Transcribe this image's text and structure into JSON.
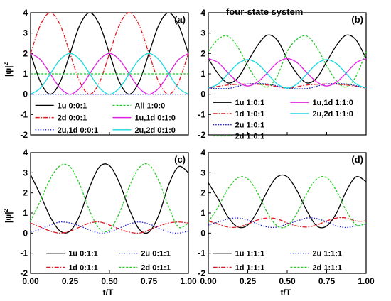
{
  "figure": {
    "title": "four-state system",
    "ylabel_main": "|ψ|",
    "ylabel_sup": "2",
    "xlabel": "t/T"
  },
  "chart_data": [
    {
      "panel": "(a)",
      "type": "line",
      "xlim": [
        0,
        1
      ],
      "ylim": [
        -2,
        4
      ],
      "xticks": [
        "0.00",
        "0.25",
        "0.50",
        "0.75",
        "1.00"
      ],
      "yticks": [
        "-2",
        "-1",
        "0",
        "1",
        "2",
        "3",
        "4"
      ],
      "series": [
        {
          "name": "1u 0:0:1",
          "color": "#000000",
          "dash": "solid",
          "x": [
            0,
            0.0625,
            0.125,
            0.1875,
            0.25,
            0.3125,
            0.375,
            0.4375,
            0.5,
            0.5625,
            0.625,
            0.6875,
            0.75,
            0.8125,
            0.875,
            0.9375,
            1
          ],
          "y": [
            2,
            0.6,
            0,
            0.6,
            2,
            3.4,
            4,
            3.4,
            2,
            0.6,
            0,
            0.6,
            2,
            3.4,
            4,
            3.4,
            2
          ]
        },
        {
          "name": "2d 0:0:1",
          "color": "#e0141e",
          "dash": "dashdot",
          "x": [
            0,
            0.0625,
            0.125,
            0.1875,
            0.25,
            0.3125,
            0.375,
            0.4375,
            0.5,
            0.5625,
            0.625,
            0.6875,
            0.75,
            0.8125,
            0.875,
            0.9375,
            1
          ],
          "y": [
            2,
            3.4,
            4,
            3.4,
            2,
            0.6,
            0,
            0.6,
            2,
            3.4,
            4,
            3.4,
            2,
            0.6,
            0,
            0.6,
            2
          ]
        },
        {
          "name": "2u,1d 0:0:1",
          "color": "#1a1ad6",
          "dash": "dot",
          "x": [
            0,
            0.25,
            0.5,
            0.75,
            1
          ],
          "y": [
            0,
            0,
            0,
            0,
            0
          ]
        },
        {
          "name": "All 1:0:0",
          "color": "#22cc22",
          "dash": "dash",
          "x": [
            0,
            0.25,
            0.5,
            0.75,
            1
          ],
          "y": [
            1,
            1,
            1,
            1,
            1
          ]
        },
        {
          "name": "1u,1d 0:1:0",
          "color": "#e020e0",
          "dash": "solid",
          "x": [
            0,
            0.0625,
            0.125,
            0.1875,
            0.25,
            0.3125,
            0.375,
            0.4375,
            0.5,
            0.5625,
            0.625,
            0.6875,
            0.75,
            0.8125,
            0.875,
            0.9375,
            1
          ],
          "y": [
            2,
            1.7,
            1,
            0.3,
            0,
            0.3,
            1,
            1.7,
            2,
            1.7,
            1,
            0.3,
            0,
            0.3,
            1,
            1.7,
            2
          ]
        },
        {
          "name": "2u,2d 0:1:0",
          "color": "#18d8e0",
          "dash": "solid",
          "x": [
            0,
            0.0625,
            0.125,
            0.1875,
            0.25,
            0.3125,
            0.375,
            0.4375,
            0.5,
            0.5625,
            0.625,
            0.6875,
            0.75,
            0.8125,
            0.875,
            0.9375,
            1
          ],
          "y": [
            0,
            0.3,
            1,
            1.7,
            2,
            1.7,
            1,
            0.3,
            0,
            0.3,
            1,
            1.7,
            2,
            1.7,
            1,
            0.3,
            0
          ]
        }
      ]
    },
    {
      "panel": "(b)",
      "type": "line",
      "xlim": [
        0,
        1
      ],
      "ylim": [
        -2,
        4
      ],
      "xticks": [
        "0.00",
        "0.25",
        "0.50",
        "0.75",
        "1.00"
      ],
      "yticks": [
        "-2",
        "-1",
        "0",
        "1",
        "2",
        "3",
        "4"
      ],
      "series": [
        {
          "name": "1u 1:0:1",
          "color": "#000000",
          "dash": "solid",
          "x": [
            0,
            0.0625,
            0.125,
            0.1875,
            0.25,
            0.3125,
            0.375,
            0.4375,
            0.5,
            0.5625,
            0.625,
            0.6875,
            0.75,
            0.8125,
            0.875,
            0.9375,
            1
          ],
          "y": [
            1.75,
            1.0,
            0.55,
            0.8,
            1.6,
            2.4,
            2.9,
            2.65,
            1.75,
            1.0,
            0.55,
            0.8,
            1.6,
            2.4,
            2.9,
            2.65,
            1.75
          ]
        },
        {
          "name": "1d 1:0:1",
          "color": "#e0141e",
          "dash": "dashdot",
          "x": [
            0,
            0.125,
            0.25,
            0.375,
            0.5,
            0.625,
            0.75,
            0.875,
            1
          ],
          "y": [
            0.3,
            0.45,
            0.5,
            0.45,
            0.3,
            0.45,
            0.5,
            0.45,
            0.3
          ]
        },
        {
          "name": "2u 1:0:1",
          "color": "#1a1ad6",
          "dash": "dot",
          "x": [
            0,
            0.125,
            0.25,
            0.375,
            0.5,
            0.625,
            0.75,
            0.875,
            1
          ],
          "y": [
            0.3,
            0.28,
            0.5,
            0.5,
            0.3,
            0.28,
            0.5,
            0.5,
            0.3
          ]
        },
        {
          "name": "2d 1:0:1",
          "color": "#22cc22",
          "dash": "dash",
          "x": [
            0,
            0.0625,
            0.125,
            0.1875,
            0.25,
            0.3125,
            0.375,
            0.4375,
            0.5,
            0.5625,
            0.625,
            0.6875,
            0.75,
            0.8125,
            0.875,
            0.9375,
            1
          ],
          "y": [
            2.1,
            2.7,
            2.85,
            2.3,
            1.4,
            0.65,
            0.35,
            0.9,
            2.1,
            2.7,
            2.85,
            2.3,
            1.4,
            0.65,
            0.35,
            0.9,
            2.1
          ]
        },
        {
          "name": "1u,1d 1:1:0",
          "color": "#e020e0",
          "dash": "solid",
          "x": [
            0,
            0.0625,
            0.125,
            0.1875,
            0.25,
            0.3125,
            0.375,
            0.4375,
            0.5,
            0.5625,
            0.625,
            0.6875,
            0.75,
            0.8125,
            0.875,
            0.9375,
            1
          ],
          "y": [
            1.75,
            1.55,
            1.05,
            0.6,
            0.4,
            0.6,
            1.05,
            1.55,
            1.75,
            1.55,
            1.05,
            0.6,
            0.4,
            0.6,
            1.05,
            1.55,
            1.75
          ]
        },
        {
          "name": "2u,2d 1:1:0",
          "color": "#18d8e0",
          "dash": "solid",
          "x": [
            0,
            0.0625,
            0.125,
            0.1875,
            0.25,
            0.3125,
            0.375,
            0.4375,
            0.5,
            0.5625,
            0.625,
            0.6875,
            0.75,
            0.8125,
            0.875,
            0.9375,
            1
          ],
          "y": [
            0.3,
            0.5,
            1.0,
            1.5,
            1.7,
            1.5,
            1.0,
            0.5,
            0.3,
            0.5,
            1.0,
            1.5,
            1.7,
            1.5,
            1.0,
            0.5,
            0.3
          ]
        }
      ]
    },
    {
      "panel": "(c)",
      "type": "line",
      "xlim": [
        0,
        1
      ],
      "ylim": [
        -2,
        4
      ],
      "xticks": [
        "0.00",
        "0.25",
        "0.50",
        "0.75",
        "1.00"
      ],
      "yticks": [
        "-2",
        "-1",
        "0",
        "1",
        "2",
        "3",
        "4"
      ],
      "series": [
        {
          "name": "1u 0:1:1",
          "color": "#000000",
          "dash": "solid",
          "x": [
            0,
            0.0625,
            0.125,
            0.1875,
            0.25,
            0.3125,
            0.375,
            0.4375,
            0.5,
            0.5625,
            0.625,
            0.6875,
            0.75,
            0.8125,
            0.875,
            0.9375,
            1
          ],
          "y": [
            2.9,
            1.9,
            0.8,
            0.1,
            0.1,
            0.9,
            2.3,
            3.3,
            3.35,
            2.5,
            1.2,
            0.2,
            0.05,
            0.9,
            2.4,
            3.3,
            3.0
          ]
        },
        {
          "name": "1d 0:1:1",
          "color": "#e0141e",
          "dash": "dashdot",
          "x": [
            0,
            0.0625,
            0.125,
            0.1875,
            0.25,
            0.3125,
            0.375,
            0.4375,
            0.5,
            0.5625,
            0.625,
            0.6875,
            0.75,
            0.8125,
            0.875,
            0.9375,
            1
          ],
          "y": [
            0.5,
            0.3,
            0.1,
            0.0,
            0.1,
            0.3,
            0.5,
            0.55,
            0.4,
            0.2,
            0.05,
            0.0,
            0.15,
            0.35,
            0.5,
            0.55,
            0.5
          ]
        },
        {
          "name": "2u 0:1:1",
          "color": "#1a1ad6",
          "dash": "dot",
          "x": [
            0,
            0.0625,
            0.125,
            0.1875,
            0.25,
            0.3125,
            0.375,
            0.4375,
            0.5,
            0.5625,
            0.625,
            0.6875,
            0.75,
            0.8125,
            0.875,
            0.9375,
            1
          ],
          "y": [
            0.05,
            0.2,
            0.4,
            0.55,
            0.5,
            0.35,
            0.15,
            0.0,
            0.05,
            0.25,
            0.45,
            0.55,
            0.45,
            0.25,
            0.05,
            0.0,
            0.1
          ]
        },
        {
          "name": "2d 0:1:1",
          "color": "#22cc22",
          "dash": "dash",
          "x": [
            0,
            0.0625,
            0.125,
            0.1875,
            0.25,
            0.3125,
            0.375,
            0.4375,
            0.5,
            0.5625,
            0.625,
            0.6875,
            0.75,
            0.8125,
            0.875,
            0.9375,
            1
          ],
          "y": [
            0.6,
            1.6,
            2.7,
            3.35,
            3.3,
            2.4,
            1.1,
            0.2,
            0.15,
            1.0,
            2.3,
            3.25,
            3.4,
            2.6,
            1.3,
            0.3,
            0.5
          ]
        }
      ]
    },
    {
      "panel": "(d)",
      "type": "line",
      "xlim": [
        0,
        1
      ],
      "ylim": [
        -2,
        4
      ],
      "xticks": [
        "0.00",
        "0.25",
        "0.50",
        "0.75",
        "1.00"
      ],
      "yticks": [
        "-2",
        "-1",
        "0",
        "1",
        "2",
        "3",
        "4"
      ],
      "series": [
        {
          "name": "1u 1:1:1",
          "color": "#000000",
          "dash": "solid",
          "x": [
            0,
            0.0625,
            0.125,
            0.1875,
            0.25,
            0.3125,
            0.375,
            0.4375,
            0.5,
            0.5625,
            0.625,
            0.6875,
            0.75,
            0.8125,
            0.875,
            0.9375,
            1
          ],
          "y": [
            2.5,
            1.7,
            0.8,
            0.3,
            0.4,
            1.1,
            2.1,
            2.8,
            2.8,
            2.1,
            1.1,
            0.35,
            0.35,
            1.0,
            2.1,
            2.8,
            2.55
          ]
        },
        {
          "name": "1d 1:1:1",
          "color": "#e0141e",
          "dash": "dashdot",
          "x": [
            0,
            0.0625,
            0.125,
            0.1875,
            0.25,
            0.3125,
            0.375,
            0.4375,
            0.5,
            0.5625,
            0.625,
            0.6875,
            0.75,
            0.8125,
            0.875,
            0.9375,
            1
          ],
          "y": [
            0.6,
            0.45,
            0.3,
            0.3,
            0.45,
            0.65,
            0.75,
            0.7,
            0.5,
            0.35,
            0.3,
            0.4,
            0.6,
            0.75,
            0.75,
            0.6,
            0.6
          ]
        },
        {
          "name": "2u 1:1:1",
          "color": "#1a1ad6",
          "dash": "dot",
          "x": [
            0,
            0.0625,
            0.125,
            0.1875,
            0.25,
            0.3125,
            0.375,
            0.4375,
            0.5,
            0.5625,
            0.625,
            0.6875,
            0.75,
            0.8125,
            0.875,
            0.9375,
            1
          ],
          "y": [
            0.4,
            0.55,
            0.7,
            0.75,
            0.65,
            0.45,
            0.3,
            0.3,
            0.45,
            0.6,
            0.75,
            0.72,
            0.55,
            0.35,
            0.28,
            0.35,
            0.45
          ]
        },
        {
          "name": "2d 1:1:1",
          "color": "#22cc22",
          "dash": "dash",
          "x": [
            0,
            0.0625,
            0.125,
            0.1875,
            0.25,
            0.3125,
            0.375,
            0.4375,
            0.5,
            0.5625,
            0.625,
            0.6875,
            0.75,
            0.8125,
            0.875,
            0.9375,
            1
          ],
          "y": [
            0.55,
            1.3,
            2.2,
            2.75,
            2.7,
            2.0,
            1.0,
            0.35,
            0.35,
            1.0,
            2.0,
            2.7,
            2.75,
            2.1,
            1.1,
            0.4,
            0.5
          ]
        }
      ]
    }
  ]
}
